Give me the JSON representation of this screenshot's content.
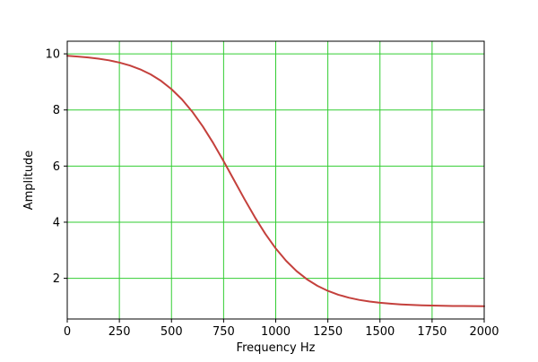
{
  "figure": {
    "background": "#ffffff",
    "axes_background": "#ffffff",
    "spine_color": "#000000"
  },
  "chart_data": {
    "type": "line",
    "title": "",
    "xlabel": "Frequency Hz",
    "ylabel": "Amplitude",
    "xlim": [
      0,
      2000
    ],
    "ylim": [
      0.55,
      10.45
    ],
    "xticks": [
      0,
      250,
      500,
      750,
      1000,
      1250,
      1500,
      1750,
      2000
    ],
    "xtick_labels": [
      "0",
      "250",
      "500",
      "750",
      "1000",
      "1250",
      "1500",
      "1750",
      "2000"
    ],
    "yticks": [
      2,
      4,
      6,
      8,
      10
    ],
    "ytick_labels": [
      "2",
      "4",
      "6",
      "8",
      "10"
    ],
    "grid": true,
    "grid_color": "#32cd32",
    "grid_linewidth": 1,
    "legend": false,
    "series": [
      {
        "name": "amplitude-response",
        "color": "#c4403c",
        "linewidth": 2,
        "x": [
          0,
          50,
          100,
          150,
          200,
          250,
          300,
          350,
          400,
          450,
          500,
          550,
          600,
          650,
          700,
          750,
          800,
          850,
          900,
          950,
          1000,
          1050,
          1100,
          1150,
          1200,
          1250,
          1300,
          1350,
          1400,
          1450,
          1500,
          1550,
          1600,
          1650,
          1700,
          1750,
          1800,
          1850,
          1900,
          1950,
          2000
        ],
        "y": [
          9.93,
          9.905,
          9.872,
          9.828,
          9.769,
          9.69,
          9.585,
          9.447,
          9.269,
          9.036,
          8.742,
          8.378,
          7.936,
          7.415,
          6.823,
          6.176,
          5.5,
          4.823,
          4.177,
          3.585,
          3.064,
          2.622,
          2.257,
          1.964,
          1.732,
          1.553,
          1.415,
          1.31,
          1.231,
          1.172,
          1.128,
          1.095,
          1.07,
          1.052,
          1.038,
          1.028,
          1.021,
          1.015,
          1.011,
          1.008,
          1.006
        ]
      }
    ]
  }
}
